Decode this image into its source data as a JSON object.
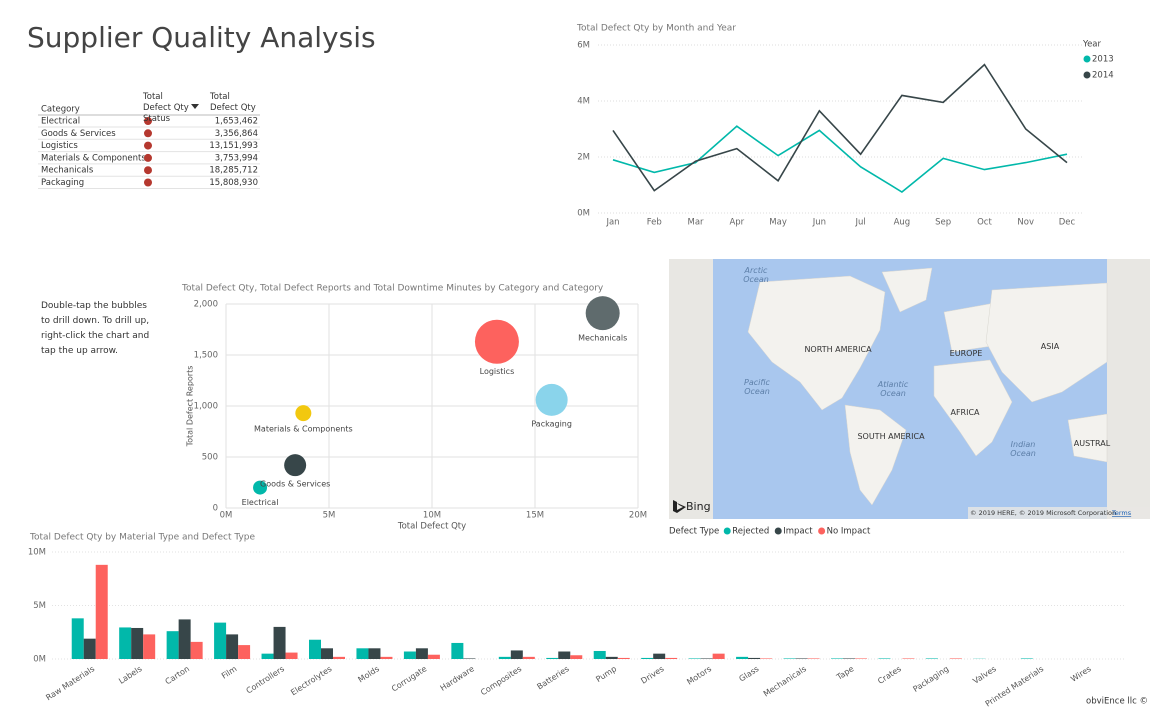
{
  "title": "Supplier Quality Analysis",
  "table": {
    "columns": [
      "Category",
      "Total Defect Qty Status",
      "Total Defect Qty"
    ],
    "rows": [
      [
        "Electrical",
        "1,653,462"
      ],
      [
        "Goods & Services",
        "3,356,864"
      ],
      [
        "Logistics",
        "13,151,993"
      ],
      [
        "Materials & Components",
        "3,753,994"
      ],
      [
        "Mechanicals",
        "18,285,712"
      ],
      [
        "Packaging",
        "15,808,930"
      ]
    ]
  },
  "note": "Double-tap the bubbles to drill down. To drill up, right-click the chart and tap the up arrow.",
  "map": {
    "labels": [
      "Arctic Ocean",
      "NORTH AMERICA",
      "EUROPE",
      "ASIA",
      "Pacific Ocean",
      "Atlantic Ocean",
      "AFRICA",
      "SOUTH AMERICA",
      "Indian Ocean",
      "AUSTRAL"
    ],
    "logo": "Bing",
    "attribution": "© 2019 HERE, © 2019 Microsoft Corporation",
    "terms": "Terms"
  },
  "footer": "obviEnce llc ©",
  "chart_data": [
    {
      "type": "line",
      "title": "Total Defect Qty by Month and Year",
      "categories": [
        "Jan",
        "Feb",
        "Mar",
        "Apr",
        "May",
        "Jun",
        "Jul",
        "Aug",
        "Sep",
        "Oct",
        "Nov",
        "Dec"
      ],
      "series": [
        {
          "name": "2013",
          "color": "#01b8aa",
          "values": [
            1900000,
            1450000,
            1800000,
            3100000,
            2050000,
            2950000,
            1650000,
            750000,
            1950000,
            1550000,
            1800000,
            2100000
          ]
        },
        {
          "name": "2014",
          "color": "#374649",
          "values": [
            2950000,
            800000,
            1850000,
            2300000,
            1150000,
            3650000,
            2100000,
            4200000,
            3950000,
            5300000,
            3000000,
            1800000
          ]
        }
      ],
      "ylim": [
        0,
        6000000
      ],
      "yticks": [
        {
          "value": 0,
          "label": "0M"
        },
        {
          "value": 2000000,
          "label": "2M"
        },
        {
          "value": 4000000,
          "label": "4M"
        },
        {
          "value": 6000000,
          "label": "6M"
        }
      ],
      "legend_title": "Year",
      "legend": "right",
      "grid": true
    },
    {
      "type": "bubble",
      "title": "Total Defect Qty, Total Defect Reports and Total Downtime Minutes by Category and Category",
      "x_label": "Total Defect Qty",
      "y_label": "Total Defect Reports",
      "categories": [
        "Electrical",
        "Goods & Services",
        "Logistics",
        "Materials & Components",
        "Mechanicals",
        "Packaging"
      ],
      "x": [
        1653462,
        3356864,
        13151993,
        3753994,
        18285712,
        15808930
      ],
      "values": [
        200,
        420,
        1630,
        930,
        1910,
        1060
      ],
      "sizes": [
        4900,
        12100,
        48400,
        6400,
        28900,
        25600
      ],
      "colors": [
        "#01b8aa",
        "#374649",
        "#fd625e",
        "#f2c80f",
        "#5f6b6d",
        "#8ad4eb"
      ],
      "xlim": [
        0,
        20000000
      ],
      "xticks": [
        {
          "value": 0,
          "label": "0M"
        },
        {
          "value": 5000000,
          "label": "5M"
        },
        {
          "value": 10000000,
          "label": "10M"
        },
        {
          "value": 15000000,
          "label": "15M"
        },
        {
          "value": 20000000,
          "label": "20M"
        }
      ],
      "ylim": [
        0,
        2000
      ],
      "yticks": [
        0,
        500,
        {
          "value": 1000,
          "label": "1,000"
        },
        {
          "value": 1500,
          "label": "1,500"
        },
        {
          "value": 2000,
          "label": "2,000"
        }
      ],
      "grid": true
    },
    {
      "type": "bar",
      "title": "Total Defect Qty by Material Type and Defect Type",
      "categories": [
        "Raw Materials",
        "Labels",
        "Carton",
        "Film",
        "Controllers",
        "Electrolytes",
        "Molds",
        "Corrugate",
        "Hardware",
        "Composites",
        "Batteries",
        "Pump",
        "Drives",
        "Motors",
        "Glass",
        "Mechanicals",
        "Tape",
        "Crates",
        "Packaging",
        "Valves",
        "Printed Materials",
        "Wires"
      ],
      "series": [
        {
          "name": "Rejected",
          "color": "#01b8aa",
          "values": [
            3800000,
            2950000,
            2600000,
            3400000,
            500000,
            1800000,
            1000000,
            700000,
            1500000,
            200000,
            100000,
            750000,
            100000,
            50000,
            200000,
            50000,
            50000,
            50000,
            50000,
            20000,
            50000,
            0
          ]
        },
        {
          "name": "Impact",
          "color": "#374649",
          "values": [
            1900000,
            2900000,
            3700000,
            2300000,
            3000000,
            1000000,
            1000000,
            1000000,
            50000,
            800000,
            700000,
            200000,
            500000,
            50000,
            100000,
            50000,
            50000,
            0,
            0,
            0,
            0,
            0
          ]
        },
        {
          "name": "No Impact",
          "color": "#fd625e",
          "values": [
            8800000,
            2300000,
            1600000,
            1300000,
            600000,
            200000,
            200000,
            400000,
            0,
            200000,
            350000,
            100000,
            100000,
            500000,
            50000,
            50000,
            50000,
            50000,
            50000,
            0,
            0,
            0
          ]
        }
      ],
      "ylim": [
        0,
        10000000
      ],
      "yticks": [
        {
          "value": 0,
          "label": "0M"
        },
        {
          "value": 5000000,
          "label": "5M"
        },
        {
          "value": 10000000,
          "label": "10M"
        }
      ],
      "legend_title": "Defect Type",
      "legend": "bottom-left",
      "grid": true
    }
  ]
}
